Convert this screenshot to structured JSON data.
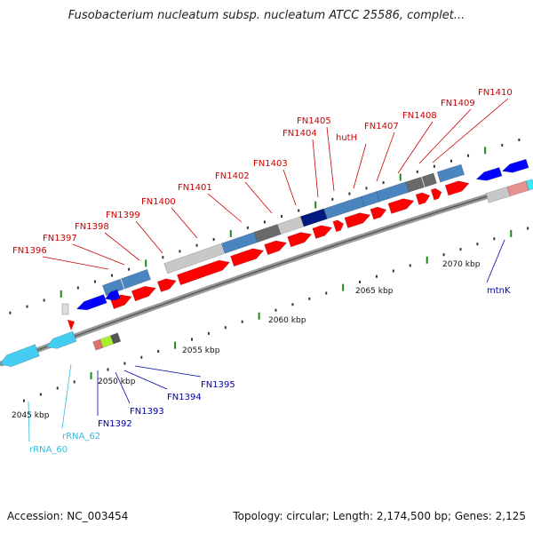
{
  "title": "Fusobacterium nucleatum subsp. nucleatum ATCC 25586, complet...",
  "footer": {
    "accession": "Accession: NC_003454",
    "summary": "Topology: circular; Length: 2,174,500 bp; Genes: 2,125"
  },
  "colors": {
    "forward_gene": "#ff0000",
    "reverse_gene": "#0000ff",
    "rrna": "#44ccf2",
    "label_red": "#cc0000",
    "label_blue": "#0000aa",
    "label_cyan": "#33bbdd",
    "axis": "#888888",
    "tick": "#1a8a1a"
  },
  "scale_labels": [
    "2045 kbp",
    "2050 kbp",
    "2055 kbp",
    "2060 kbp",
    "2065 kbp",
    "2070 kbp"
  ],
  "labels": [
    {
      "text": "FN1396",
      "color": "red"
    },
    {
      "text": "FN1397",
      "color": "red"
    },
    {
      "text": "FN1398",
      "color": "red"
    },
    {
      "text": "FN1399",
      "color": "red"
    },
    {
      "text": "FN1400",
      "color": "red"
    },
    {
      "text": "FN1401",
      "color": "red"
    },
    {
      "text": "FN1402",
      "color": "red"
    },
    {
      "text": "FN1403",
      "color": "red"
    },
    {
      "text": "FN1404",
      "color": "red"
    },
    {
      "text": "FN1405",
      "color": "red"
    },
    {
      "text": "hutH",
      "color": "red"
    },
    {
      "text": "FN1407",
      "color": "red"
    },
    {
      "text": "FN1408",
      "color": "red"
    },
    {
      "text": "FN1409",
      "color": "red"
    },
    {
      "text": "FN1410",
      "color": "red"
    },
    {
      "text": "mtnK",
      "color": "blue"
    },
    {
      "text": "FN1395",
      "color": "blue"
    },
    {
      "text": "FN1394",
      "color": "blue"
    },
    {
      "text": "FN1393",
      "color": "blue"
    },
    {
      "text": "FN1392",
      "color": "blue"
    },
    {
      "text": "rRNA_62",
      "color": "cyan"
    },
    {
      "text": "rRNA_60",
      "color": "cyan"
    }
  ]
}
